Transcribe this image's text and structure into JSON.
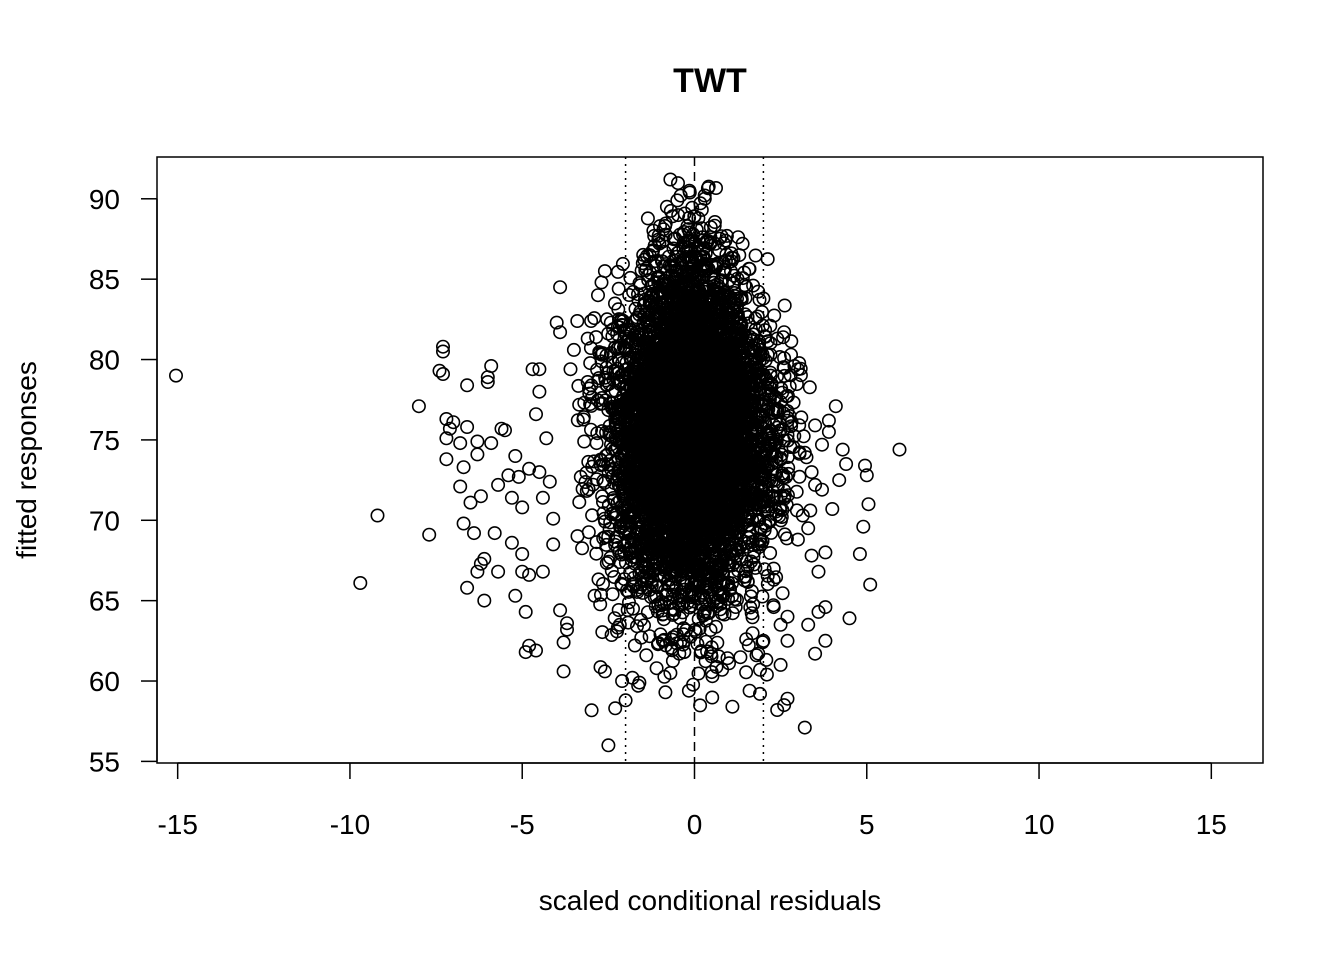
{
  "chart_data": {
    "type": "scatter",
    "title": "TWT",
    "xlabel": "scaled conditional residuals",
    "ylabel": "fitted responses",
    "xlim": [
      -15.6,
      16.5
    ],
    "ylim": [
      54.9,
      92.6
    ],
    "xticks": [
      -15,
      -10,
      -5,
      0,
      5,
      10,
      15
    ],
    "yticks": [
      55,
      60,
      65,
      70,
      75,
      80,
      85,
      90
    ],
    "reference_lines": [
      {
        "x": -2,
        "style": "dotted"
      },
      {
        "x": 0,
        "style": "dashed"
      },
      {
        "x": 2,
        "style": "dotted"
      }
    ],
    "marker": "open-circle",
    "core_cloud": {
      "description_points": "dense central cloud of several thousand points",
      "x_center": -0.1,
      "x_sd": 1.0,
      "y_center": 75.5,
      "y_range": [
        58,
        91
      ],
      "n": 6500,
      "seed": 7
    },
    "outliers": [
      [
        -15.05,
        79.0
      ],
      [
        -9.7,
        66.1
      ],
      [
        -9.2,
        70.3
      ],
      [
        -8.0,
        77.1
      ],
      [
        -7.7,
        69.1
      ],
      [
        -7.3,
        80.8
      ],
      [
        -7.3,
        80.5
      ],
      [
        -7.4,
        79.3
      ],
      [
        -7.3,
        79.1
      ],
      [
        -7.2,
        76.3
      ],
      [
        -7.1,
        75.7
      ],
      [
        -7.2,
        75.1
      ],
      [
        -7.0,
        76.1
      ],
      [
        -7.2,
        73.8
      ],
      [
        -6.8,
        72.1
      ],
      [
        -6.7,
        69.8
      ],
      [
        -6.8,
        74.8
      ],
      [
        -6.6,
        75.8
      ],
      [
        -6.6,
        78.4
      ],
      [
        -6.7,
        73.3
      ],
      [
        -6.6,
        65.8
      ],
      [
        -6.5,
        71.1
      ],
      [
        -6.4,
        69.2
      ],
      [
        -6.3,
        74.1
      ],
      [
        -6.3,
        74.9
      ],
      [
        -6.2,
        71.5
      ],
      [
        -6.3,
        66.8
      ],
      [
        -6.2,
        67.3
      ],
      [
        -6.1,
        67.6
      ],
      [
        -6.1,
        65.0
      ],
      [
        -6.0,
        78.9
      ],
      [
        -6.0,
        78.6
      ],
      [
        -5.9,
        79.6
      ],
      [
        -5.9,
        74.8
      ],
      [
        -5.8,
        69.2
      ],
      [
        -5.7,
        72.2
      ],
      [
        -5.7,
        66.8
      ],
      [
        -5.6,
        75.7
      ],
      [
        -5.5,
        75.6
      ],
      [
        -5.4,
        72.8
      ],
      [
        -5.3,
        71.4
      ],
      [
        -5.3,
        68.6
      ],
      [
        -5.2,
        74.0
      ],
      [
        -5.2,
        65.3
      ],
      [
        -5.1,
        72.7
      ],
      [
        -5.0,
        70.8
      ],
      [
        -5.0,
        67.9
      ],
      [
        -5.0,
        66.8
      ],
      [
        -4.9,
        64.3
      ],
      [
        -4.9,
        61.8
      ],
      [
        -4.8,
        62.2
      ],
      [
        -4.8,
        73.2
      ],
      [
        -4.8,
        66.6
      ],
      [
        -4.7,
        79.4
      ],
      [
        -4.6,
        76.6
      ],
      [
        -4.6,
        61.9
      ],
      [
        -4.5,
        79.4
      ],
      [
        -4.5,
        78.0
      ],
      [
        -4.5,
        73.0
      ],
      [
        -4.4,
        71.4
      ],
      [
        -4.4,
        66.8
      ],
      [
        -4.3,
        75.1
      ],
      [
        -4.2,
        72.4
      ],
      [
        -4.1,
        70.1
      ],
      [
        -4.1,
        68.5
      ],
      [
        -4.0,
        82.3
      ],
      [
        -3.9,
        84.5
      ],
      [
        -3.9,
        81.7
      ],
      [
        -3.9,
        64.4
      ],
      [
        -3.8,
        60.6
      ],
      [
        -3.8,
        62.4
      ],
      [
        -3.7,
        63.6
      ],
      [
        -3.7,
        63.2
      ],
      [
        -3.6,
        79.4
      ],
      [
        -3.5,
        80.6
      ],
      [
        -3.4,
        82.4
      ],
      [
        -3.3,
        72.7
      ],
      [
        -3.2,
        74.9
      ],
      [
        -3.1,
        78.6
      ],
      [
        -3.1,
        81.3
      ],
      [
        -3.0,
        82.4
      ],
      [
        -2.9,
        65.3
      ],
      [
        -2.8,
        84.0
      ],
      [
        -2.7,
        84.8
      ],
      [
        -2.6,
        85.5
      ],
      [
        -2.6,
        60.6
      ],
      [
        -2.5,
        56.0
      ],
      [
        -2.3,
        58.3
      ],
      [
        -2.2,
        84.4
      ],
      [
        -2.1,
        60.0
      ],
      [
        -2.0,
        58.8
      ],
      [
        -1.9,
        64.9
      ],
      [
        -1.8,
        60.2
      ],
      [
        -1.6,
        59.9
      ],
      [
        -1.4,
        61.6
      ],
      [
        -1.3,
        86.5
      ],
      [
        -1.2,
        86.8
      ],
      [
        -1.1,
        60.8
      ],
      [
        -1.0,
        88.3
      ],
      [
        -0.9,
        88.1
      ],
      [
        -0.8,
        89.5
      ],
      [
        -0.7,
        60.5
      ],
      [
        -0.7,
        91.2
      ],
      [
        -0.5,
        89.9
      ],
      [
        -0.4,
        90.2
      ],
      [
        -0.3,
        61.8
      ],
      [
        0.0,
        88.9
      ],
      [
        0.3,
        90.0
      ],
      [
        0.5,
        62.1
      ],
      [
        0.6,
        87.2
      ],
      [
        0.8,
        60.7
      ],
      [
        0.9,
        87.4
      ],
      [
        1.0,
        61.1
      ],
      [
        1.1,
        58.4
      ],
      [
        1.3,
        86.5
      ],
      [
        1.5,
        62.6
      ],
      [
        1.6,
        59.4
      ],
      [
        1.7,
        84.6
      ],
      [
        1.8,
        61.6
      ],
      [
        1.9,
        60.7
      ],
      [
        1.9,
        59.2
      ],
      [
        2.0,
        83.8
      ],
      [
        2.0,
        62.5
      ],
      [
        2.1,
        60.4
      ],
      [
        2.2,
        82.1
      ],
      [
        2.3,
        64.6
      ],
      [
        2.3,
        66.3
      ],
      [
        2.4,
        81.3
      ],
      [
        2.4,
        58.2
      ],
      [
        2.5,
        63.5
      ],
      [
        2.5,
        61.0
      ],
      [
        2.6,
        81.7
      ],
      [
        2.6,
        58.5
      ],
      [
        2.7,
        58.9
      ],
      [
        2.7,
        62.5
      ],
      [
        2.7,
        64.0
      ],
      [
        2.8,
        80.3
      ],
      [
        2.9,
        79.6
      ],
      [
        3.0,
        79.4
      ],
      [
        3.0,
        68.8
      ],
      [
        3.1,
        76.4
      ],
      [
        3.2,
        74.2
      ],
      [
        3.2,
        57.1
      ],
      [
        3.3,
        63.5
      ],
      [
        3.3,
        69.5
      ],
      [
        3.4,
        73.0
      ],
      [
        3.4,
        67.8
      ],
      [
        3.5,
        61.7
      ],
      [
        3.5,
        75.9
      ],
      [
        3.5,
        72.2
      ],
      [
        3.6,
        64.3
      ],
      [
        3.6,
        66.8
      ],
      [
        3.7,
        74.7
      ],
      [
        3.7,
        71.9
      ],
      [
        3.8,
        64.6
      ],
      [
        3.8,
        62.5
      ],
      [
        3.8,
        68.0
      ],
      [
        3.9,
        76.2
      ],
      [
        3.9,
        75.5
      ],
      [
        4.0,
        70.7
      ],
      [
        4.1,
        77.1
      ],
      [
        4.2,
        72.5
      ],
      [
        4.3,
        74.4
      ],
      [
        4.4,
        73.5
      ],
      [
        4.5,
        63.9
      ],
      [
        4.8,
        67.9
      ],
      [
        4.9,
        69.6
      ],
      [
        4.95,
        73.4
      ],
      [
        5.0,
        72.8
      ],
      [
        5.05,
        71.0
      ],
      [
        5.1,
        66.0
      ],
      [
        5.95,
        74.4
      ]
    ]
  }
}
